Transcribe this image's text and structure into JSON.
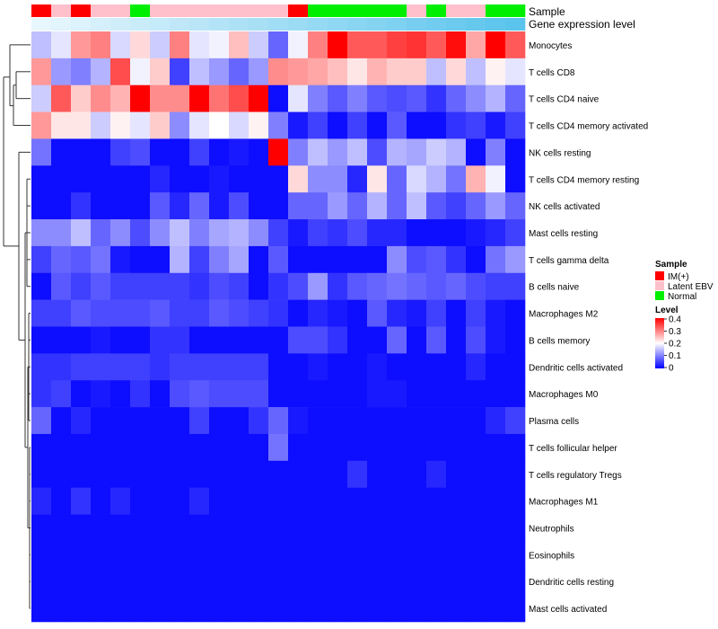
{
  "chart_data": {
    "type": "heatmap",
    "annotation_labels": [
      "Sample",
      "Gene expression level"
    ],
    "rows": [
      "Monocytes",
      "T cells CD8",
      "T cells CD4 naive",
      "T cells CD4 memory activated",
      "NK cells resting",
      "T cells CD4 memory resting",
      "NK cells activated",
      "Mast cells resting",
      "T cells gamma delta",
      "B cells naive",
      "Macrophages M2",
      "B cells memory",
      "Dendritic cells activated",
      "Macrophages M0",
      "Plasma cells",
      "T cells follicular helper",
      "T cells regulatory  Tregs",
      "Macrophages M1",
      "Neutrophils",
      "Eosinophils",
      "Dendritic cells resting",
      "Mast cells activated"
    ],
    "sample_groups": [
      "IM(+)",
      "Latent EBV",
      "IM(+)",
      "Latent EBV",
      "Latent EBV",
      "Normal",
      "Latent EBV",
      "Latent EBV",
      "Latent EBV",
      "Latent EBV",
      "Latent EBV",
      "Latent EBV",
      "Latent EBV",
      "IM(+)",
      "Normal",
      "Normal",
      "Normal",
      "Normal",
      "Normal",
      "Latent EBV",
      "Normal",
      "Latent EBV",
      "Latent EBV",
      "Normal",
      "Normal"
    ],
    "values": [
      [
        0.15,
        0.18,
        0.28,
        0.3,
        0.17,
        0.23,
        0.16,
        0.3,
        0.18,
        0.19,
        0.25,
        0.16,
        0.08,
        0.19,
        0.3,
        0.4,
        0.33,
        0.33,
        0.35,
        0.36,
        0.33,
        0.39,
        0.27,
        0.4,
        0.33
      ],
      [
        0.28,
        0.12,
        0.1,
        0.14,
        0.34,
        0.19,
        0.24,
        0.05,
        0.15,
        0.12,
        0.08,
        0.12,
        0.29,
        0.28,
        0.27,
        0.25,
        0.22,
        0.26,
        0.24,
        0.24,
        0.15,
        0.23,
        0.15,
        0.21,
        0.18
      ],
      [
        0.16,
        0.33,
        0.24,
        0.29,
        0.26,
        0.4,
        0.29,
        0.29,
        0.4,
        0.31,
        0.34,
        0.4,
        0.01,
        0.18,
        0.1,
        0.07,
        0.1,
        0.07,
        0.06,
        0.07,
        0.04,
        0.08,
        0.11,
        0.14,
        0.08
      ],
      [
        0.28,
        0.22,
        0.22,
        0.16,
        0.21,
        0.18,
        0.24,
        0.11,
        0.18,
        0.2,
        0.17,
        0.21,
        0.1,
        0.02,
        0.05,
        0.01,
        0.05,
        0.01,
        0.07,
        0.01,
        0.01,
        0.04,
        0.05,
        0.02,
        0.05
      ],
      [
        0.09,
        0.01,
        0.01,
        0.01,
        0.05,
        0.06,
        0.01,
        0.01,
        0.05,
        0.01,
        0.02,
        0.01,
        0.4,
        0.1,
        0.15,
        0.12,
        0.15,
        0.06,
        0.14,
        0.13,
        0.16,
        0.14,
        0.01,
        0.1,
        0.01
      ],
      [
        0.01,
        0.01,
        0.01,
        0.01,
        0.01,
        0.01,
        0.03,
        0.01,
        0.01,
        0.02,
        0.01,
        0.01,
        0.01,
        0.23,
        0.11,
        0.11,
        0.03,
        0.22,
        0.08,
        0.17,
        0.14,
        0.09,
        0.26,
        0.19,
        0.01
      ],
      [
        0.01,
        0.01,
        0.04,
        0.01,
        0.01,
        0.01,
        0.07,
        0.03,
        0.08,
        0.02,
        0.06,
        0.01,
        0.01,
        0.08,
        0.08,
        0.12,
        0.08,
        0.14,
        0.08,
        0.15,
        0.07,
        0.05,
        0.08,
        0.12,
        0.08
      ],
      [
        0.11,
        0.11,
        0.15,
        0.08,
        0.11,
        0.06,
        0.11,
        0.15,
        0.1,
        0.13,
        0.14,
        0.11,
        0.05,
        0.02,
        0.05,
        0.04,
        0.06,
        0.03,
        0.03,
        0.01,
        0.01,
        0.01,
        0.02,
        0.03,
        0.05
      ],
      [
        0.05,
        0.08,
        0.07,
        0.09,
        0.02,
        0.01,
        0.01,
        0.14,
        0.05,
        0.1,
        0.13,
        0.01,
        0.07,
        0.01,
        0.01,
        0.01,
        0.01,
        0.01,
        0.11,
        0.06,
        0.07,
        0.04,
        0.01,
        0.09,
        0.12
      ],
      [
        0.01,
        0.07,
        0.05,
        0.07,
        0.05,
        0.05,
        0.05,
        0.05,
        0.04,
        0.06,
        0.05,
        0.01,
        0.04,
        0.06,
        0.12,
        0.04,
        0.07,
        0.08,
        0.09,
        0.08,
        0.07,
        0.08,
        0.06,
        0.05,
        0.05
      ],
      [
        0.05,
        0.05,
        0.07,
        0.06,
        0.06,
        0.06,
        0.07,
        0.05,
        0.05,
        0.07,
        0.06,
        0.05,
        0.04,
        0.01,
        0.03,
        0.02,
        0.01,
        0.07,
        0.03,
        0.02,
        0.05,
        0.01,
        0.05,
        0.02,
        0.01
      ],
      [
        0.01,
        0.01,
        0.01,
        0.02,
        0.01,
        0.01,
        0.04,
        0.04,
        0.01,
        0.01,
        0.01,
        0.01,
        0.01,
        0.06,
        0.06,
        0.04,
        0.01,
        0.01,
        0.08,
        0.01,
        0.07,
        0.01,
        0.06,
        0.02,
        0.01
      ],
      [
        0.04,
        0.04,
        0.05,
        0.05,
        0.05,
        0.05,
        0.04,
        0.05,
        0.05,
        0.05,
        0.05,
        0.05,
        0.01,
        0.01,
        0.02,
        0.01,
        0.01,
        0.02,
        0.01,
        0.01,
        0.01,
        0.01,
        0.03,
        0.01,
        0.01
      ],
      [
        0.04,
        0.05,
        0.01,
        0.02,
        0.01,
        0.04,
        0.01,
        0.06,
        0.07,
        0.06,
        0.06,
        0.06,
        0.01,
        0.01,
        0.01,
        0.01,
        0.01,
        0.02,
        0.02,
        0.01,
        0.01,
        0.01,
        0.01,
        0.01,
        0.01
      ],
      [
        0.08,
        0.01,
        0.03,
        0.01,
        0.01,
        0.01,
        0.01,
        0.01,
        0.05,
        0.01,
        0.01,
        0.04,
        0.08,
        0.02,
        0.01,
        0.01,
        0.01,
        0.01,
        0.01,
        0.01,
        0.01,
        0.01,
        0.01,
        0.03,
        0.05
      ],
      [
        0.01,
        0.01,
        0.01,
        0.01,
        0.01,
        0.01,
        0.01,
        0.01,
        0.01,
        0.01,
        0.01,
        0.01,
        0.09,
        0.01,
        0.01,
        0.01,
        0.01,
        0.01,
        0.01,
        0.01,
        0.01,
        0.01,
        0.01,
        0.01,
        0.01
      ],
      [
        0.01,
        0.01,
        0.01,
        0.01,
        0.01,
        0.01,
        0.01,
        0.01,
        0.01,
        0.01,
        0.01,
        0.01,
        0.01,
        0.01,
        0.01,
        0.01,
        0.04,
        0.01,
        0.01,
        0.01,
        0.03,
        0.01,
        0.01,
        0.01,
        0.01
      ],
      [
        0.03,
        0.01,
        0.04,
        0.01,
        0.03,
        0.01,
        0.01,
        0.01,
        0.03,
        0.01,
        0.01,
        0.01,
        0.01,
        0.01,
        0.01,
        0.01,
        0.01,
        0.01,
        0.01,
        0.01,
        0.01,
        0.01,
        0.01,
        0.01,
        0.01
      ],
      [
        0.01,
        0.01,
        0.01,
        0.01,
        0.01,
        0.01,
        0.01,
        0.01,
        0.01,
        0.01,
        0.01,
        0.01,
        0.01,
        0.01,
        0.01,
        0.01,
        0.01,
        0.01,
        0.01,
        0.01,
        0.01,
        0.01,
        0.01,
        0.01,
        0.01
      ],
      [
        0.01,
        0.01,
        0.01,
        0.01,
        0.01,
        0.01,
        0.01,
        0.01,
        0.01,
        0.01,
        0.01,
        0.01,
        0.01,
        0.01,
        0.01,
        0.01,
        0.01,
        0.01,
        0.01,
        0.01,
        0.01,
        0.01,
        0.01,
        0.01,
        0.01
      ],
      [
        0.01,
        0.01,
        0.01,
        0.01,
        0.01,
        0.01,
        0.01,
        0.01,
        0.01,
        0.01,
        0.01,
        0.01,
        0.01,
        0.01,
        0.01,
        0.01,
        0.01,
        0.01,
        0.01,
        0.01,
        0.01,
        0.01,
        0.01,
        0.01,
        0.01
      ],
      [
        0.01,
        0.01,
        0.01,
        0.01,
        0.01,
        0.01,
        0.01,
        0.01,
        0.01,
        0.01,
        0.01,
        0.01,
        0.01,
        0.01,
        0.01,
        0.01,
        0.01,
        0.01,
        0.01,
        0.01,
        0.01,
        0.01,
        0.01,
        0.01,
        0.01
      ]
    ],
    "color_scale": {
      "min": 0,
      "mid": 0.2,
      "max": 0.4,
      "low_color": "#0000ff",
      "mid_color": "#ffffff",
      "high_color": "#ff0000"
    },
    "expression_bar_colors": [
      "#e8f6fd",
      "#5ac4ec"
    ],
    "legend": {
      "placement": "right",
      "sample_title": "Sample",
      "sample_entries": [
        {
          "label": "IM(+)",
          "color": "#ff0000"
        },
        {
          "label": "Latent EBV",
          "color": "#ffc0cb"
        },
        {
          "label": "Normal",
          "color": "#00ee00"
        }
      ],
      "level_title": "Level",
      "level_ticks": [
        "0.4",
        "0.3",
        "0.2",
        "0.1",
        "0"
      ]
    },
    "dendrogram": "rows",
    "grid": false
  }
}
